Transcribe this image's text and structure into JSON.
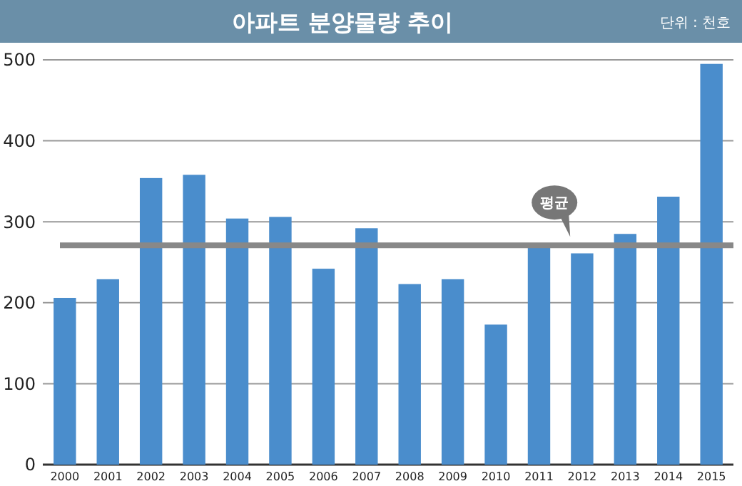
{
  "chart_data": {
    "type": "bar",
    "title": "아파트 분양물량 추이",
    "subtitle": "단위 : 천호",
    "categories": [
      "2000",
      "2001",
      "2002",
      "2003",
      "2004",
      "2005",
      "2006",
      "2007",
      "2008",
      "2009",
      "2010",
      "2011",
      "2012",
      "2013",
      "2014",
      "2015"
    ],
    "values": [
      206,
      229,
      354,
      358,
      304,
      306,
      242,
      292,
      223,
      229,
      173,
      270,
      261,
      285,
      331,
      495
    ],
    "color": "#4a8dcc",
    "ylim": [
      0,
      500
    ],
    "yticks": [
      0,
      100,
      200,
      300,
      400,
      500
    ],
    "grid": "y",
    "ref_lines": [
      {
        "axis": "y",
        "value": 271,
        "label": "평균",
        "color": "#888888"
      }
    ]
  }
}
